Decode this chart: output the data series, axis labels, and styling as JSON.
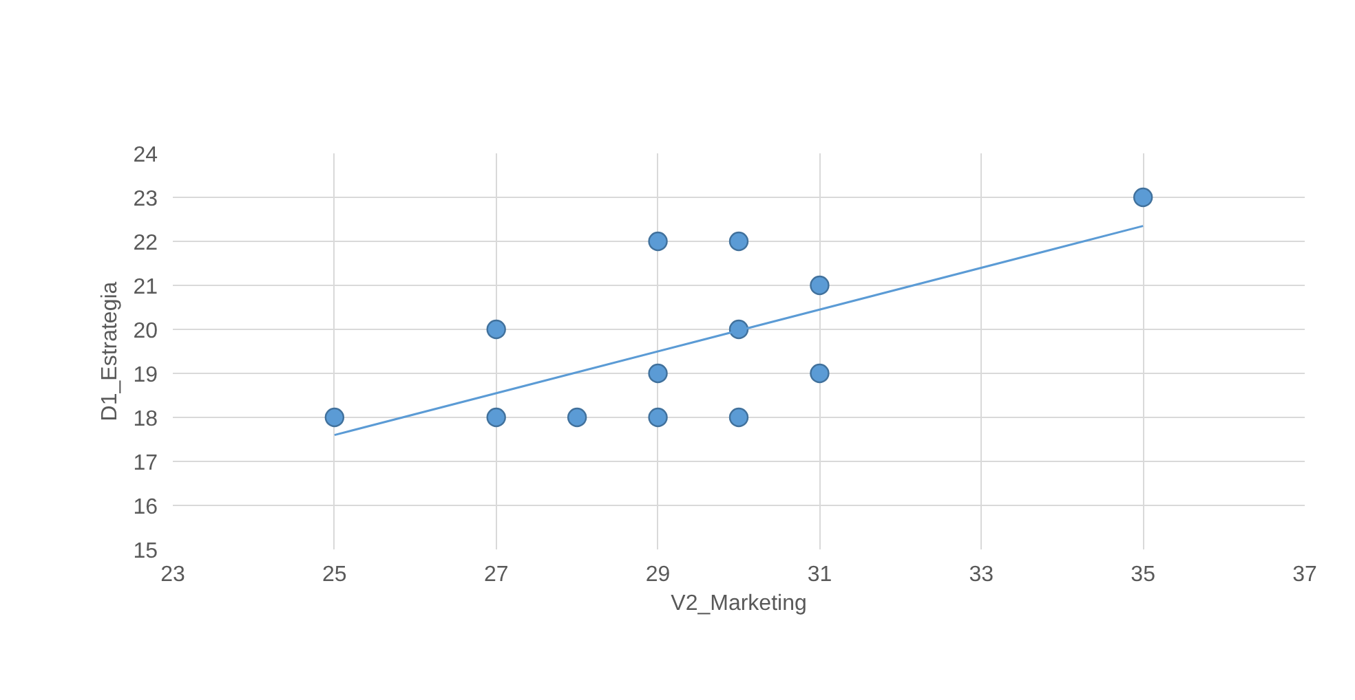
{
  "chart_data": {
    "type": "scatter",
    "xlabel": "V2_Marketing",
    "ylabel": "D1_Estrategia",
    "x": [
      25,
      27,
      27,
      28,
      29,
      29,
      29,
      30,
      30,
      30,
      31,
      31,
      35
    ],
    "series": [
      {
        "color": "#5b9bd5",
        "values": [
          18,
          20,
          18,
          18,
          22,
          19,
          18,
          22,
          20,
          18,
          21,
          19,
          23
        ]
      },
      {
        "type": "line",
        "marker": "none",
        "color": "#5b9bd5",
        "x": [
          25,
          35
        ],
        "values": [
          17.6,
          22.35
        ]
      }
    ],
    "xlim": [
      23,
      37
    ],
    "xticks": [
      23,
      25,
      27,
      29,
      31,
      33,
      35,
      37
    ],
    "ylim": [
      15,
      24
    ],
    "yticks": [
      15,
      16,
      17,
      18,
      19,
      20,
      21,
      22,
      23,
      24
    ],
    "grid": true,
    "marker": "circle"
  }
}
